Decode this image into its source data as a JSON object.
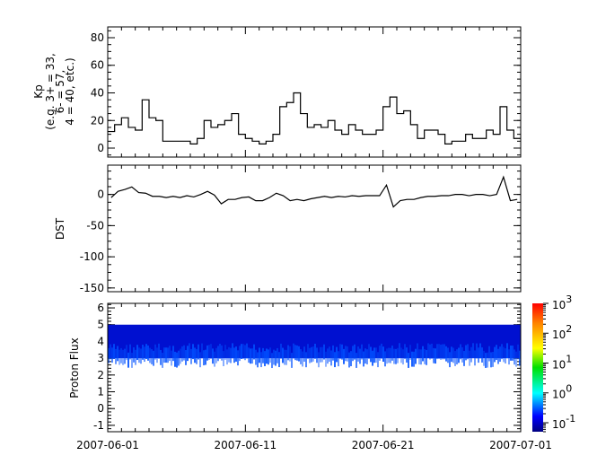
{
  "chart_data": [
    {
      "type": "line",
      "ylabel_lines": [
        "Kp",
        "(e.g. 3+ = 33,",
        "6- = 57,",
        "4 = 40, etc.)"
      ],
      "ylim": [
        -6.5,
        87.8
      ],
      "yticks": [
        0,
        20,
        40,
        60,
        80
      ],
      "step": true,
      "x_start": "2007-06-01",
      "x_step_days": 0.5,
      "values": [
        12,
        17,
        22,
        15,
        13,
        35,
        22,
        20,
        5,
        5,
        5,
        5,
        3,
        7,
        20,
        15,
        17,
        20,
        25,
        10,
        7,
        5,
        3,
        5,
        10,
        30,
        33,
        40,
        25,
        15,
        17,
        15,
        20,
        13,
        10,
        17,
        13,
        10,
        10,
        13,
        30,
        37,
        25,
        27,
        17,
        7,
        13,
        13,
        10,
        3,
        5,
        5,
        10,
        7,
        7,
        13,
        10,
        30,
        13,
        7
      ]
    },
    {
      "type": "line",
      "ylabel": "DST",
      "ylim": [
        -156,
        47
      ],
      "yticks": [
        0,
        -50,
        -100,
        -150
      ],
      "x_start": "2007-06-01",
      "x_step_days": 0.5,
      "values": [
        -5,
        5,
        8,
        12,
        3,
        2,
        -3,
        -3,
        -5,
        -3,
        -5,
        -2,
        -4,
        0,
        5,
        -1,
        -15,
        -8,
        -8,
        -5,
        -4,
        -10,
        -10,
        -5,
        2,
        -2,
        -10,
        -8,
        -10,
        -7,
        -5,
        -3,
        -5,
        -3,
        -4,
        -2,
        -3,
        -2,
        -2,
        -2,
        15,
        -20,
        -10,
        -8,
        -8,
        -5,
        -3,
        -3,
        -2,
        -2,
        0,
        0,
        -2,
        0,
        0,
        -2,
        0,
        28,
        -10,
        -8
      ]
    },
    {
      "type": "heatmap",
      "ylabel": "Proton Flux",
      "ylim": [
        -1.38,
        6.27
      ],
      "yticks": [
        -1,
        0,
        1,
        2,
        3,
        4,
        5,
        6
      ],
      "band_y": [
        3,
        5
      ],
      "flux_range": [
        0.1,
        0.3
      ],
      "colorbar": {
        "scale": "log",
        "range": [
          0.05,
          1000
        ],
        "ticks": [
          {
            "base": "10",
            "exp": "3"
          },
          {
            "base": "10",
            "exp": "2"
          },
          {
            "base": "10",
            "exp": "1"
          },
          {
            "base": "10",
            "exp": "0"
          },
          {
            "base": "10",
            "exp": "-1"
          }
        ],
        "tick_values": [
          1000,
          100,
          10,
          1,
          0.1
        ]
      }
    }
  ],
  "x_axis": {
    "range": [
      "2007-06-01",
      "2007-07-01"
    ],
    "tick_labels": [
      "2007-06-01",
      "2007-06-11",
      "2007-06-21",
      "2007-07-01"
    ],
    "tick_days": [
      0,
      10,
      20,
      30
    ]
  },
  "colors": {
    "line": "#000000",
    "band_low": "#0010d0",
    "band_high": "#0050ff"
  }
}
